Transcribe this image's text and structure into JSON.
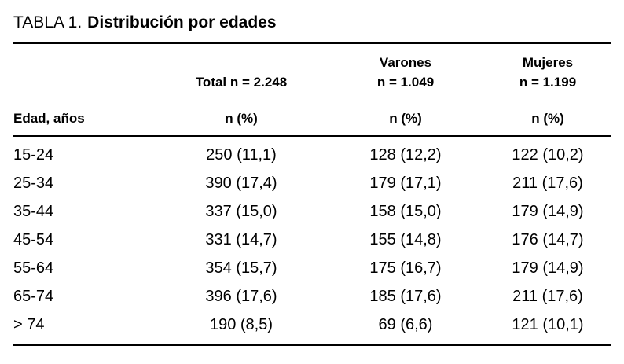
{
  "title": {
    "label": "TABLA 1.",
    "text": "Distribución por edades"
  },
  "table": {
    "header": {
      "edad": "Edad, años",
      "total": {
        "line1": "Total n = 2.248",
        "line2": "n (%)"
      },
      "varones": {
        "line1": "Varones",
        "line2": "n = 1.049",
        "line3": "n (%)"
      },
      "mujeres": {
        "line1": "Mujeres",
        "line2": "n = 1.199",
        "line3": "n (%)"
      }
    },
    "rows": [
      {
        "edad": "15-24",
        "total": "250 (11,1)",
        "varones": "128 (12,2)",
        "mujeres": "122 (10,2)"
      },
      {
        "edad": "25-34",
        "total": "390 (17,4)",
        "varones": "179 (17,1)",
        "mujeres": "211 (17,6)"
      },
      {
        "edad": "35-44",
        "total": "337 (15,0)",
        "varones": "158 (15,0)",
        "mujeres": "179 (14,9)"
      },
      {
        "edad": "45-54",
        "total": "331 (14,7)",
        "varones": "155 (14,8)",
        "mujeres": "176 (14,7)"
      },
      {
        "edad": "55-64",
        "total": "354 (15,7)",
        "varones": "175 (16,7)",
        "mujeres": "179 (14,9)"
      },
      {
        "edad": "65-74",
        "total": "396 (17,6)",
        "varones": "185 (17,6)",
        "mujeres": "211 (17,6)"
      },
      {
        "edad": "> 74",
        "total": "190 (8,5)",
        "varones": "69 (6,6)",
        "mujeres": "121 (10,1)"
      }
    ]
  }
}
